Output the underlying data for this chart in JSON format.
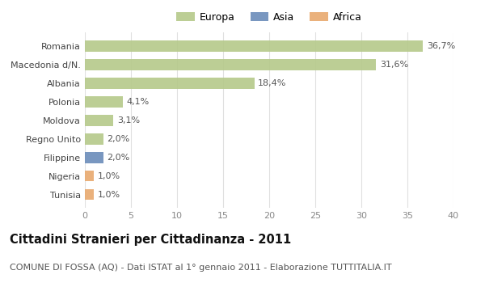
{
  "categories": [
    "Romania",
    "Macedonia d/N.",
    "Albania",
    "Polonia",
    "Moldova",
    "Regno Unito",
    "Filippine",
    "Nigeria",
    "Tunisia"
  ],
  "values": [
    36.7,
    31.6,
    18.4,
    4.1,
    3.1,
    2.0,
    2.0,
    1.0,
    1.0
  ],
  "labels": [
    "36,7%",
    "31,6%",
    "18,4%",
    "4,1%",
    "3,1%",
    "2,0%",
    "2,0%",
    "1,0%",
    "1,0%"
  ],
  "colors": [
    "#b5c98a",
    "#b5c98a",
    "#b5c98a",
    "#b5c98a",
    "#b5c98a",
    "#b5c98a",
    "#6b8cba",
    "#e8a96e",
    "#e8a96e"
  ],
  "legend_labels": [
    "Europa",
    "Asia",
    "Africa"
  ],
  "legend_colors": [
    "#b5c98a",
    "#6b8cba",
    "#e8a96e"
  ],
  "title": "Cittadini Stranieri per Cittadinanza - 2011",
  "subtitle": "COMUNE DI FOSSA (AQ) - Dati ISTAT al 1° gennaio 2011 - Elaborazione TUTTITALIA.IT",
  "xlim": [
    0,
    40
  ],
  "xticks": [
    0,
    5,
    10,
    15,
    20,
    25,
    30,
    35,
    40
  ],
  "bg_color": "#ffffff",
  "plot_bg_color": "#ffffff",
  "bar_height": 0.6,
  "title_fontsize": 10.5,
  "subtitle_fontsize": 8,
  "tick_fontsize": 8,
  "label_fontsize": 8
}
